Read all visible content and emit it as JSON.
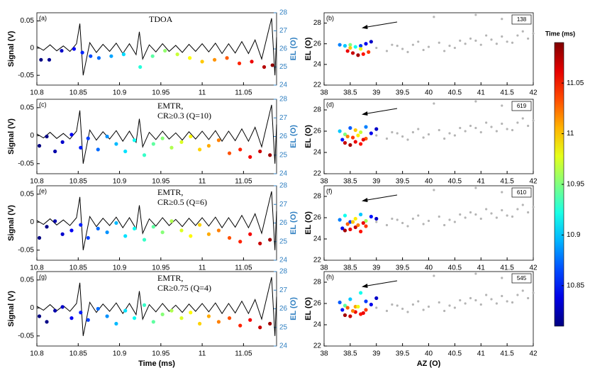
{
  "chart_data": [
    {
      "type": "signal_el",
      "label": "(a)",
      "annotation": [
        "TDOA"
      ],
      "xlim": [
        10.8,
        11.09
      ],
      "xticks": [
        10.8,
        10.85,
        10.9,
        10.95,
        11,
        11.05
      ],
      "ylim": [
        -0.068,
        0.065
      ],
      "yticks": [
        0.05,
        0,
        -0.05
      ],
      "ylabel": "Signal (V)",
      "y2lim": [
        24,
        28
      ],
      "y2ticks": [
        24,
        25,
        26,
        27,
        28
      ],
      "y2label": "EL (O)",
      "series": [
        {
          "axis": "y2",
          "x": [
            10.805,
            10.815,
            10.83,
            10.845,
            10.855,
            10.865,
            10.875,
            10.89,
            10.905,
            10.925,
            10.94,
            10.955,
            10.97,
            10.985,
            11,
            11.015,
            11.03,
            11.045,
            11.06,
            11.075,
            11.085
          ],
          "values": [
            25.4,
            25.4,
            25.9,
            26.0,
            25.8,
            25.6,
            25.5,
            25.6,
            25.7,
            25.0,
            25.6,
            25.9,
            25.7,
            25.5,
            25.3,
            25.4,
            25.5,
            25.2,
            25.3,
            25.0,
            25.1
          ]
        }
      ]
    },
    {
      "type": "az_el",
      "label": "(b)",
      "count": 138,
      "xlim": [
        38,
        42
      ],
      "xticks": [
        38,
        38.5,
        39,
        39.5,
        40,
        40.5,
        41,
        41.5,
        42
      ],
      "ylim": [
        22,
        29
      ],
      "yticks": [
        22,
        24,
        26,
        28
      ],
      "ylabel": "EL (O)",
      "series": [
        {
          "x": [
            38.3,
            38.4,
            38.5,
            38.6,
            38.7,
            38.8,
            38.9,
            38.45,
            38.55,
            38.65,
            38.75,
            38.85,
            38.5,
            38.7
          ],
          "values": [
            25.9,
            25.8,
            25.9,
            25.7,
            25.8,
            26.0,
            26.2,
            25.3,
            25.1,
            24.9,
            25.0,
            25.2,
            25.6,
            25.5
          ],
          "time": [
            10.88,
            10.9,
            10.95,
            10.92,
            10.86,
            10.84,
            10.83,
            11.06,
            11.07,
            11.08,
            11.05,
            11.04,
            11.0,
            10.98
          ]
        }
      ]
    },
    {
      "type": "signal_el",
      "label": "(c)",
      "annotation": [
        "EMTR,",
        "CR≥0.3 (Q=10)"
      ],
      "xlim": [
        10.8,
        11.09
      ],
      "xticks": [
        10.8,
        10.85,
        10.9,
        10.95,
        11,
        11.05
      ],
      "ylim": [
        -0.068,
        0.065
      ],
      "yticks": [
        0.05,
        0,
        -0.05
      ],
      "ylabel": "Signal (V)",
      "y2lim": [
        24,
        28
      ],
      "y2ticks": [
        24,
        25,
        26,
        27,
        28
      ],
      "y2label": "EL (O)",
      "series": [
        {
          "axis": "y2",
          "x": [
            10.803,
            10.812,
            10.822,
            10.831,
            10.842,
            10.853,
            10.862,
            10.874,
            10.885,
            10.896,
            10.907,
            10.918,
            10.93,
            10.941,
            10.952,
            10.963,
            10.975,
            10.986,
            10.997,
            11.008,
            11.02,
            11.033,
            11.046,
            11.058,
            11.07,
            11.082
          ],
          "values": [
            25.5,
            26.0,
            25.2,
            25.7,
            26.1,
            25.4,
            25.9,
            25.3,
            26.0,
            25.6,
            25.2,
            25.8,
            25.0,
            25.6,
            25.9,
            25.4,
            25.7,
            26.0,
            25.3,
            25.5,
            25.8,
            25.1,
            25.3,
            24.9,
            25.2,
            25.0
          ]
        }
      ]
    },
    {
      "type": "az_el",
      "label": "(d)",
      "count": 619,
      "xlim": [
        38,
        42
      ],
      "xticks": [
        38,
        38.5,
        39,
        39.5,
        40,
        40.5,
        41,
        41.5,
        42
      ],
      "ylim": [
        22,
        29
      ],
      "yticks": [
        22,
        24,
        26,
        28
      ],
      "ylabel": "EL (O)",
      "series": [
        {
          "x": [
            38.3,
            38.35,
            38.4,
            38.5,
            38.6,
            38.7,
            38.8,
            38.9,
            39.0,
            38.4,
            38.5,
            38.6,
            38.7,
            38.8,
            38.45,
            38.55,
            38.65,
            38.75
          ],
          "values": [
            26.0,
            25.2,
            25.7,
            26.3,
            26.1,
            25.9,
            26.4,
            25.8,
            26.2,
            24.9,
            24.7,
            25.0,
            24.8,
            25.3,
            25.5,
            25.4,
            25.6,
            25.2
          ],
          "time": [
            10.9,
            10.85,
            10.95,
            10.87,
            11.0,
            10.97,
            10.88,
            10.84,
            10.83,
            11.07,
            11.08,
            11.06,
            11.05,
            11.03,
            11.02,
            11.04,
            10.99,
            11.06
          ]
        }
      ]
    },
    {
      "type": "signal_el",
      "label": "(e)",
      "annotation": [
        "EMTR,",
        "CR≥0.5 (Q=6)"
      ],
      "xlim": [
        10.8,
        11.09
      ],
      "xticks": [
        10.8,
        10.85,
        10.9,
        10.95,
        11,
        11.05
      ],
      "ylim": [
        -0.068,
        0.065
      ],
      "yticks": [
        0.05,
        0,
        -0.05
      ],
      "ylabel": "Signal (V)",
      "y2lim": [
        24,
        28
      ],
      "y2ticks": [
        24,
        25,
        26,
        27,
        28
      ],
      "y2label": "EL (O)",
      "series": [
        {
          "axis": "y2",
          "x": [
            10.803,
            10.812,
            10.822,
            10.831,
            10.842,
            10.853,
            10.862,
            10.874,
            10.885,
            10.896,
            10.907,
            10.918,
            10.93,
            10.941,
            10.952,
            10.963,
            10.975,
            10.986,
            10.997,
            11.008,
            11.02,
            11.033,
            11.046,
            11.058,
            11.07,
            11.082
          ],
          "values": [
            25.2,
            25.8,
            26.1,
            25.4,
            25.6,
            25.9,
            25.2,
            25.7,
            25.5,
            26.0,
            25.3,
            25.7,
            25.1,
            25.8,
            25.5,
            26.1,
            25.6,
            25.3,
            25.9,
            25.4,
            25.6,
            25.2,
            25.0,
            25.4,
            24.9,
            25.1
          ]
        }
      ]
    },
    {
      "type": "az_el",
      "label": "(f)",
      "count": 610,
      "xlim": [
        38,
        42
      ],
      "xticks": [
        38,
        38.5,
        39,
        39.5,
        40,
        40.5,
        41,
        41.5,
        42
      ],
      "ylim": [
        22,
        29
      ],
      "yticks": [
        22,
        24,
        26,
        28
      ],
      "ylabel": "EL (O)",
      "series": [
        {
          "x": [
            38.3,
            38.35,
            38.4,
            38.5,
            38.6,
            38.7,
            38.8,
            38.9,
            39.0,
            38.4,
            38.5,
            38.6,
            38.7,
            38.8,
            38.45,
            38.55,
            38.65,
            38.75
          ],
          "values": [
            25.8,
            25.0,
            26.2,
            25.6,
            25.9,
            26.3,
            25.7,
            26.1,
            25.9,
            24.8,
            24.9,
            25.1,
            24.7,
            25.2,
            25.4,
            25.6,
            25.3,
            25.5
          ],
          "time": [
            10.88,
            10.84,
            10.92,
            10.86,
            10.99,
            10.9,
            10.96,
            10.85,
            10.83,
            11.08,
            11.06,
            11.07,
            11.05,
            11.04,
            11.03,
            11.0,
            11.02,
            11.06
          ]
        }
      ]
    },
    {
      "type": "signal_el",
      "label": "(g)",
      "annotation": [
        "EMTR,",
        "CR≥0.75 (Q=4)"
      ],
      "xlim": [
        10.8,
        11.09
      ],
      "xticks": [
        10.8,
        10.85,
        10.9,
        10.95,
        11,
        11.05
      ],
      "ylim": [
        -0.068,
        0.065
      ],
      "yticks": [
        0.05,
        0,
        -0.05
      ],
      "ylabel": "Signal (V)",
      "y2lim": [
        24,
        28
      ],
      "y2ticks": [
        24,
        25,
        26,
        27,
        28
      ],
      "y2label": "EL (O)",
      "xlabel": "Time (ms)",
      "series": [
        {
          "axis": "y2",
          "x": [
            10.803,
            10.812,
            10.822,
            10.831,
            10.842,
            10.853,
            10.862,
            10.874,
            10.885,
            10.896,
            10.907,
            10.918,
            10.93,
            10.941,
            10.952,
            10.963,
            10.975,
            10.986,
            10.997,
            11.008,
            11.02,
            11.033,
            11.046,
            11.058,
            11.07,
            11.082
          ],
          "values": [
            25.6,
            25.3,
            25.9,
            26.1,
            25.5,
            25.8,
            25.4,
            26.0,
            25.6,
            25.2,
            25.9,
            25.5,
            26.2,
            25.3,
            25.7,
            25.9,
            25.5,
            25.8,
            25.2,
            25.6,
            25.3,
            25.5,
            25.1,
            25.4,
            25.0,
            25.2
          ]
        }
      ]
    },
    {
      "type": "az_el",
      "label": "(h)",
      "count": 545,
      "xlim": [
        38,
        42
      ],
      "xticks": [
        38,
        38.5,
        39,
        39.5,
        40,
        40.5,
        41,
        41.5,
        42
      ],
      "ylim": [
        22,
        29
      ],
      "yticks": [
        22,
        24,
        26,
        28
      ],
      "ylabel": "EL (O)",
      "xlabel": "AZ (O)",
      "series": [
        {
          "x": [
            38.3,
            38.35,
            38.4,
            38.5,
            38.6,
            38.7,
            38.8,
            38.9,
            39.0,
            38.4,
            38.5,
            38.6,
            38.7,
            38.8,
            38.45,
            38.55,
            38.65,
            38.75
          ],
          "values": [
            26.1,
            25.4,
            25.8,
            26.4,
            25.7,
            27.0,
            26.2,
            25.9,
            26.5,
            24.9,
            24.8,
            25.2,
            25.0,
            25.4,
            25.6,
            25.3,
            25.7,
            25.1
          ],
          "time": [
            10.87,
            10.85,
            10.94,
            10.9,
            11.01,
            10.92,
            10.86,
            10.84,
            10.83,
            11.08,
            11.07,
            11.06,
            11.05,
            11.04,
            11.03,
            11.02,
            10.98,
            11.06
          ]
        }
      ]
    }
  ],
  "signal": {
    "color": "#000000",
    "x": [
      10.8,
      10.808,
      10.816,
      10.824,
      10.832,
      10.84,
      10.848,
      10.852,
      10.856,
      10.864,
      10.872,
      10.88,
      10.888,
      10.896,
      10.904,
      10.912,
      10.92,
      10.924,
      10.928,
      10.936,
      10.944,
      10.952,
      10.96,
      10.968,
      10.976,
      10.984,
      10.992,
      11,
      11.008,
      11.016,
      11.024,
      11.032,
      11.04,
      11.048,
      11.056,
      11.064,
      11.072,
      11.08,
      11.084,
      11.088,
      11.09
    ],
    "values": [
      0.003,
      -0.004,
      0.006,
      -0.005,
      0.004,
      -0.006,
      0.008,
      0.045,
      -0.05,
      0.01,
      -0.008,
      0.007,
      -0.006,
      0.009,
      -0.01,
      0.008,
      -0.012,
      0.03,
      -0.02,
      0.006,
      -0.007,
      0.008,
      -0.006,
      0.005,
      -0.008,
      0.007,
      -0.006,
      0.008,
      -0.007,
      0.009,
      -0.01,
      0.008,
      -0.009,
      0.012,
      -0.01,
      0.015,
      -0.02,
      0.03,
      0.055,
      -0.05,
      0.02
    ]
  },
  "cloud": {
    "color": "#b4b4b4",
    "x": [
      39.0,
      39.2,
      39.4,
      39.5,
      39.7,
      39.9,
      40.0,
      40.2,
      40.4,
      40.5,
      40.7,
      40.9,
      41.0,
      41.2,
      41.4,
      41.5,
      41.7,
      41.9,
      42.0,
      39.3,
      39.8,
      40.3,
      40.8,
      41.3,
      41.8,
      39.6,
      40.6,
      41.1,
      41.6,
      40.1,
      40.9,
      41.4
    ],
    "values": [
      25.6,
      25.3,
      25.8,
      25.5,
      25.9,
      25.4,
      25.7,
      26.1,
      25.8,
      25.6,
      26.0,
      26.3,
      25.9,
      26.4,
      26.7,
      26.2,
      26.8,
      26.5,
      27.0,
      25.9,
      26.2,
      25.3,
      26.5,
      26.0,
      27.2,
      25.2,
      26.3,
      26.8,
      26.1,
      28.6,
      28.8,
      28.4
    ]
  },
  "colorbar": {
    "label": "Time (ms)",
    "clim": [
      10.81,
      11.09
    ],
    "ticks": [
      10.85,
      10.9,
      10.95,
      11,
      11.05
    ]
  }
}
